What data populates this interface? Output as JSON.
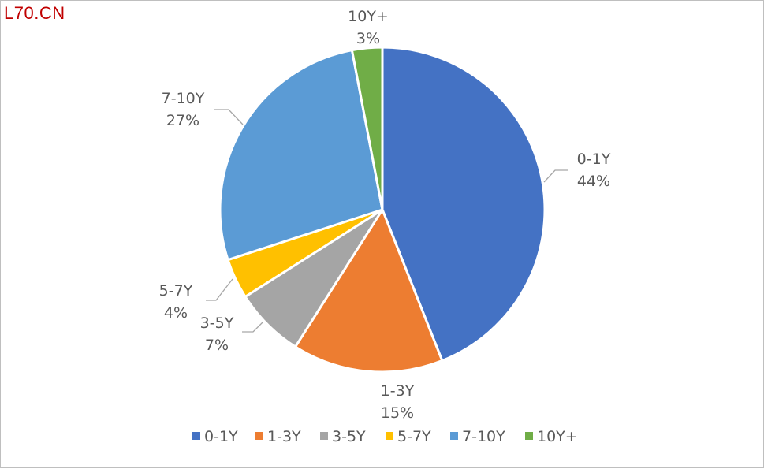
{
  "watermark": "L70.CN",
  "chart_data": {
    "type": "pie",
    "title": "",
    "categories": [
      "0-1Y",
      "1-3Y",
      "3-5Y",
      "5-7Y",
      "7-10Y",
      "10Y+"
    ],
    "values": [
      44,
      15,
      7,
      4,
      27,
      3
    ],
    "value_labels": [
      "44%",
      "15%",
      "7%",
      "4%",
      "27%",
      "3%"
    ],
    "colors": [
      "#4472c4",
      "#ed7d31",
      "#a5a5a5",
      "#ffc000",
      "#5b9bd5",
      "#70ad47"
    ],
    "legend": "bottom",
    "start_angle": "12 o'clock",
    "direction": "clockwise"
  }
}
